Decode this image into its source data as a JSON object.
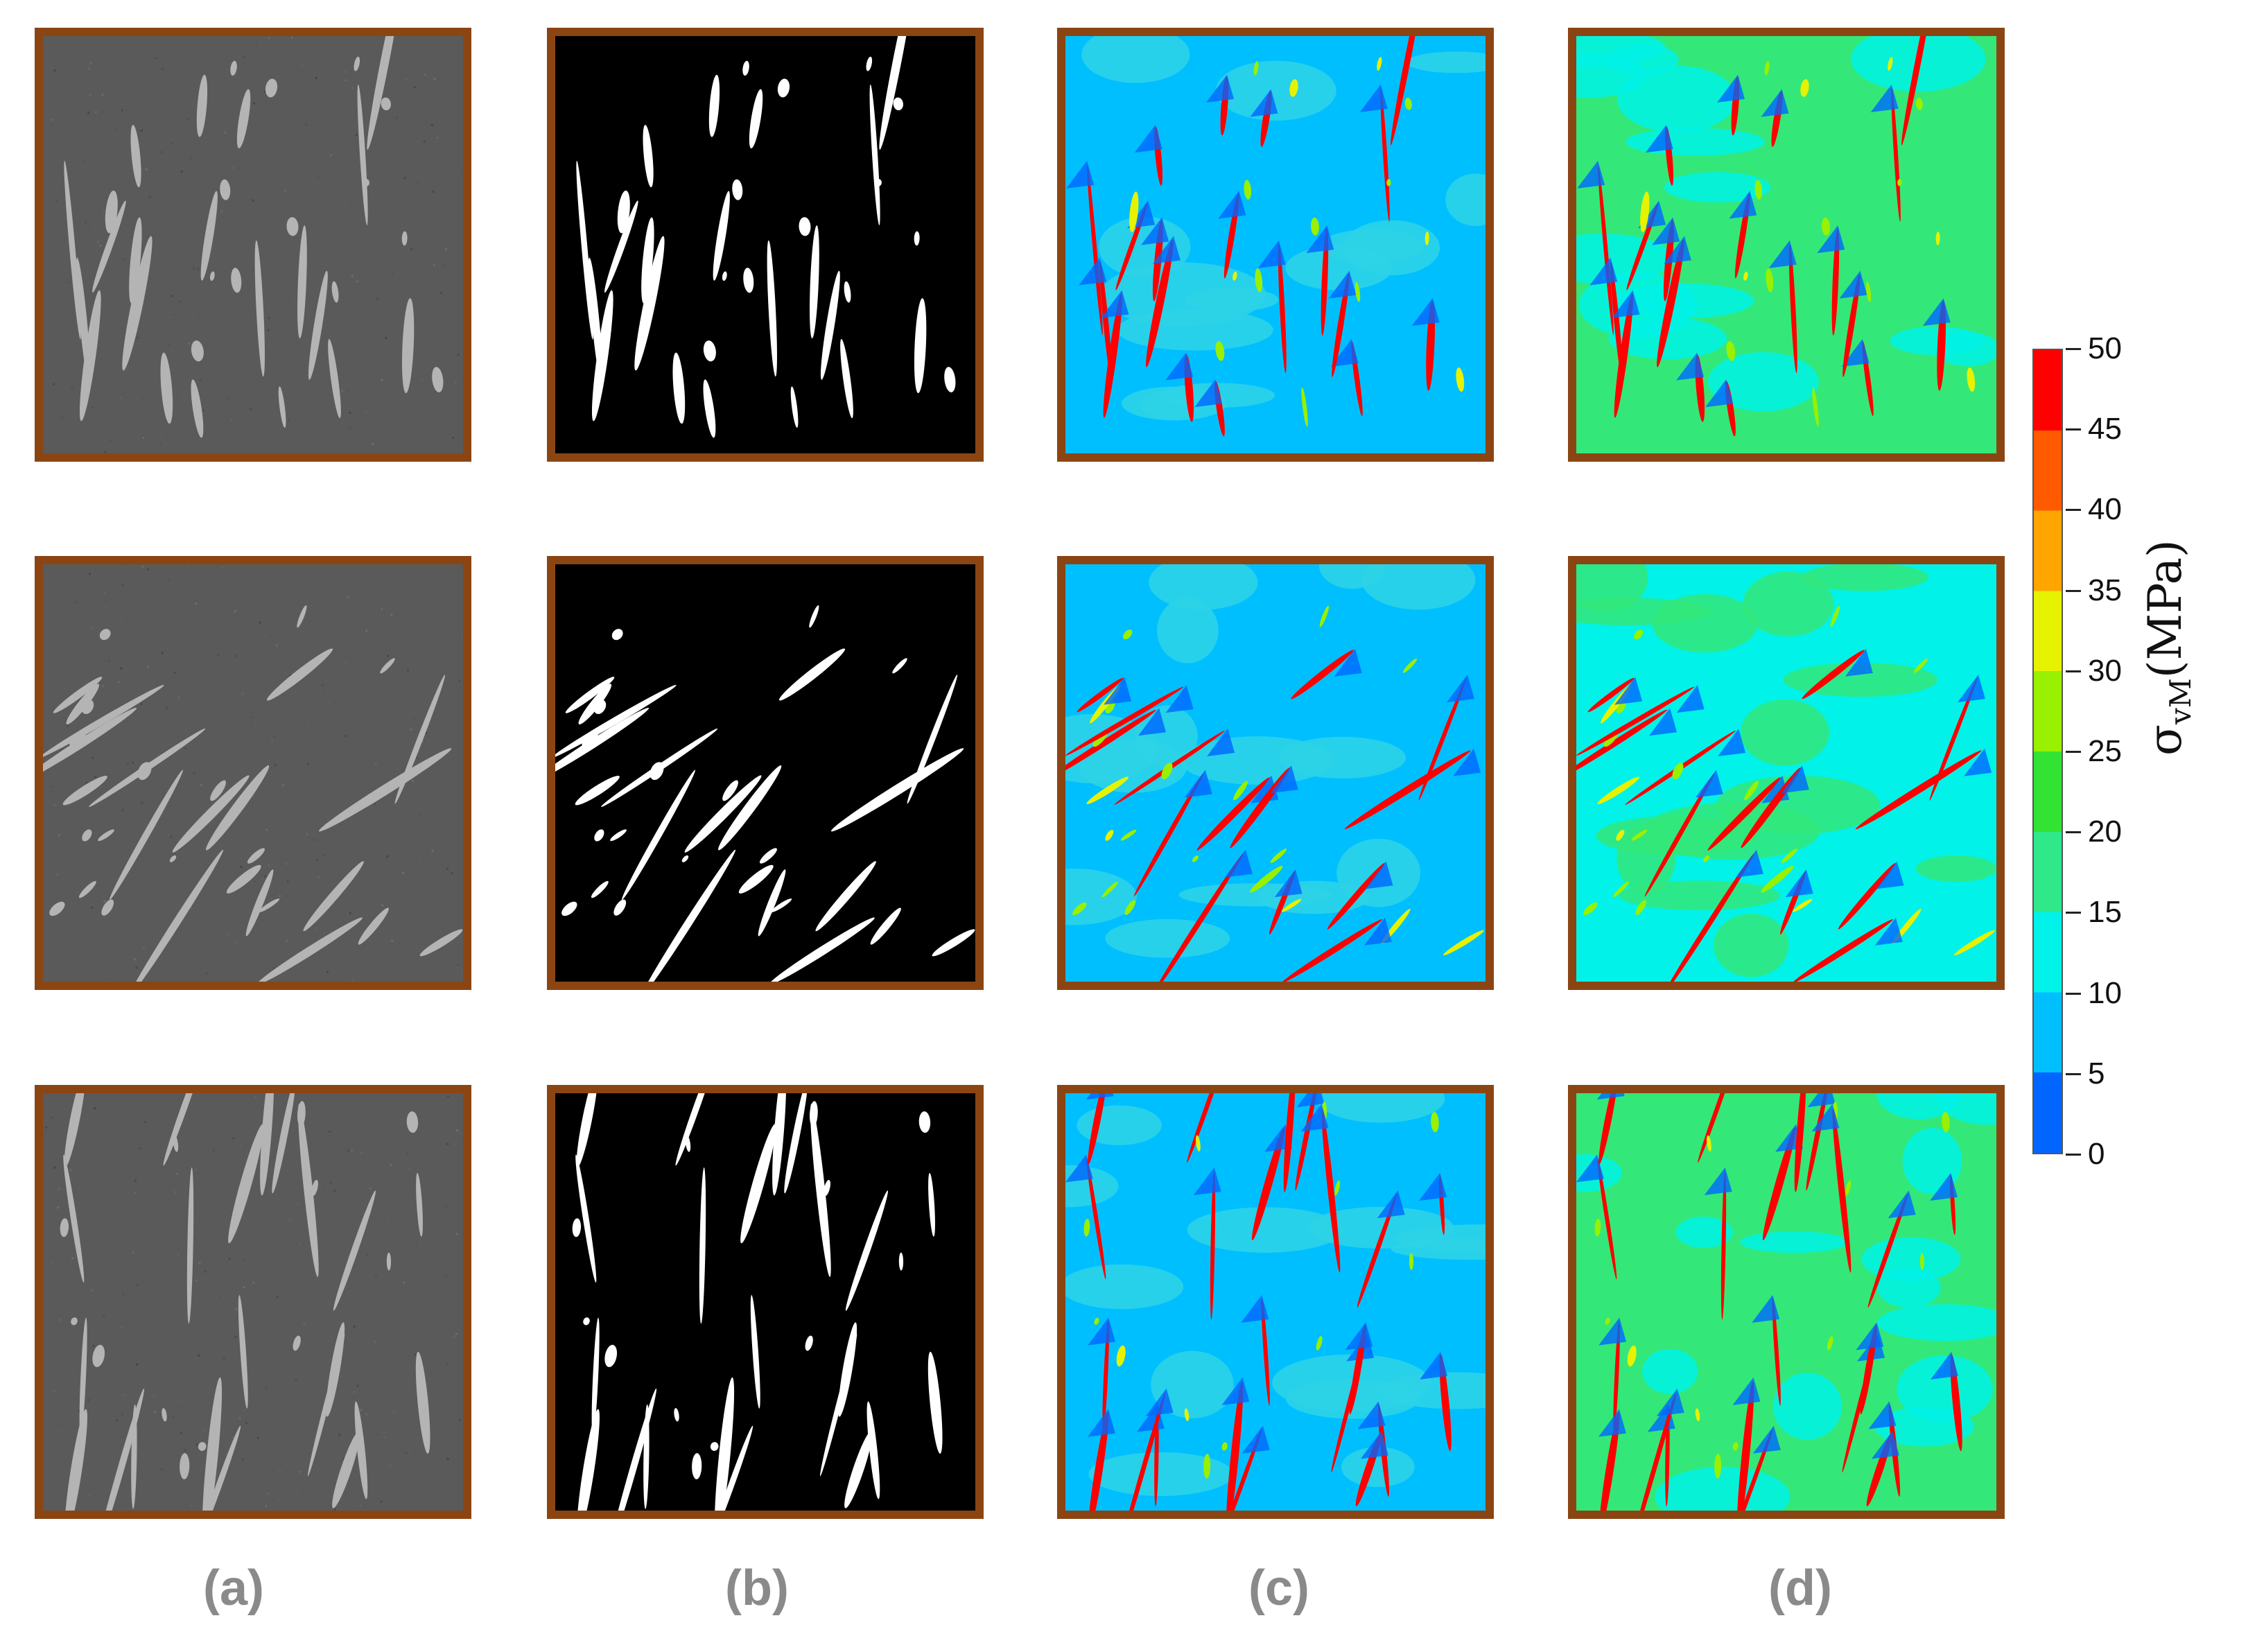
{
  "figure": {
    "column_labels": [
      "(a)",
      "(b)",
      "(c)",
      "(d)"
    ],
    "panels": [
      {
        "row": 1,
        "col": "a",
        "type": "grayscale-micrograph"
      },
      {
        "row": 1,
        "col": "b",
        "type": "binary-segmentation"
      },
      {
        "row": 1,
        "col": "c",
        "type": "stress-map",
        "base_color": "#00BFFF"
      },
      {
        "row": 1,
        "col": "d",
        "type": "stress-map",
        "base_color": "#33E879"
      },
      {
        "row": 2,
        "col": "a",
        "type": "grayscale-micrograph"
      },
      {
        "row": 2,
        "col": "b",
        "type": "binary-segmentation"
      },
      {
        "row": 2,
        "col": "c",
        "type": "stress-map",
        "base_color": "#00BFFF"
      },
      {
        "row": 2,
        "col": "d",
        "type": "stress-map",
        "base_color": "#00F2E8"
      },
      {
        "row": 3,
        "col": "a",
        "type": "grayscale-micrograph"
      },
      {
        "row": 3,
        "col": "b",
        "type": "binary-segmentation"
      },
      {
        "row": 3,
        "col": "c",
        "type": "stress-map",
        "base_color": "#00BFFF"
      },
      {
        "row": 3,
        "col": "d",
        "type": "stress-map",
        "base_color": "#33E879"
      }
    ],
    "frame_color": "#8B4513"
  },
  "colorbar": {
    "title_symbol": "σ",
    "title_subscript": "vM",
    "title_unit": "(MPa)",
    "ticks": [
      "50",
      "45",
      "40",
      "35",
      "30",
      "25",
      "20",
      "15",
      "10",
      "5",
      "0"
    ],
    "range": [
      0,
      50
    ],
    "colors": [
      "#FF0000",
      "#FF5A00",
      "#FFA500",
      "#E6F200",
      "#99F000",
      "#33E333",
      "#2EE889",
      "#00F2E8",
      "#00BFFF",
      "#0066FF",
      "#0000FF"
    ]
  }
}
